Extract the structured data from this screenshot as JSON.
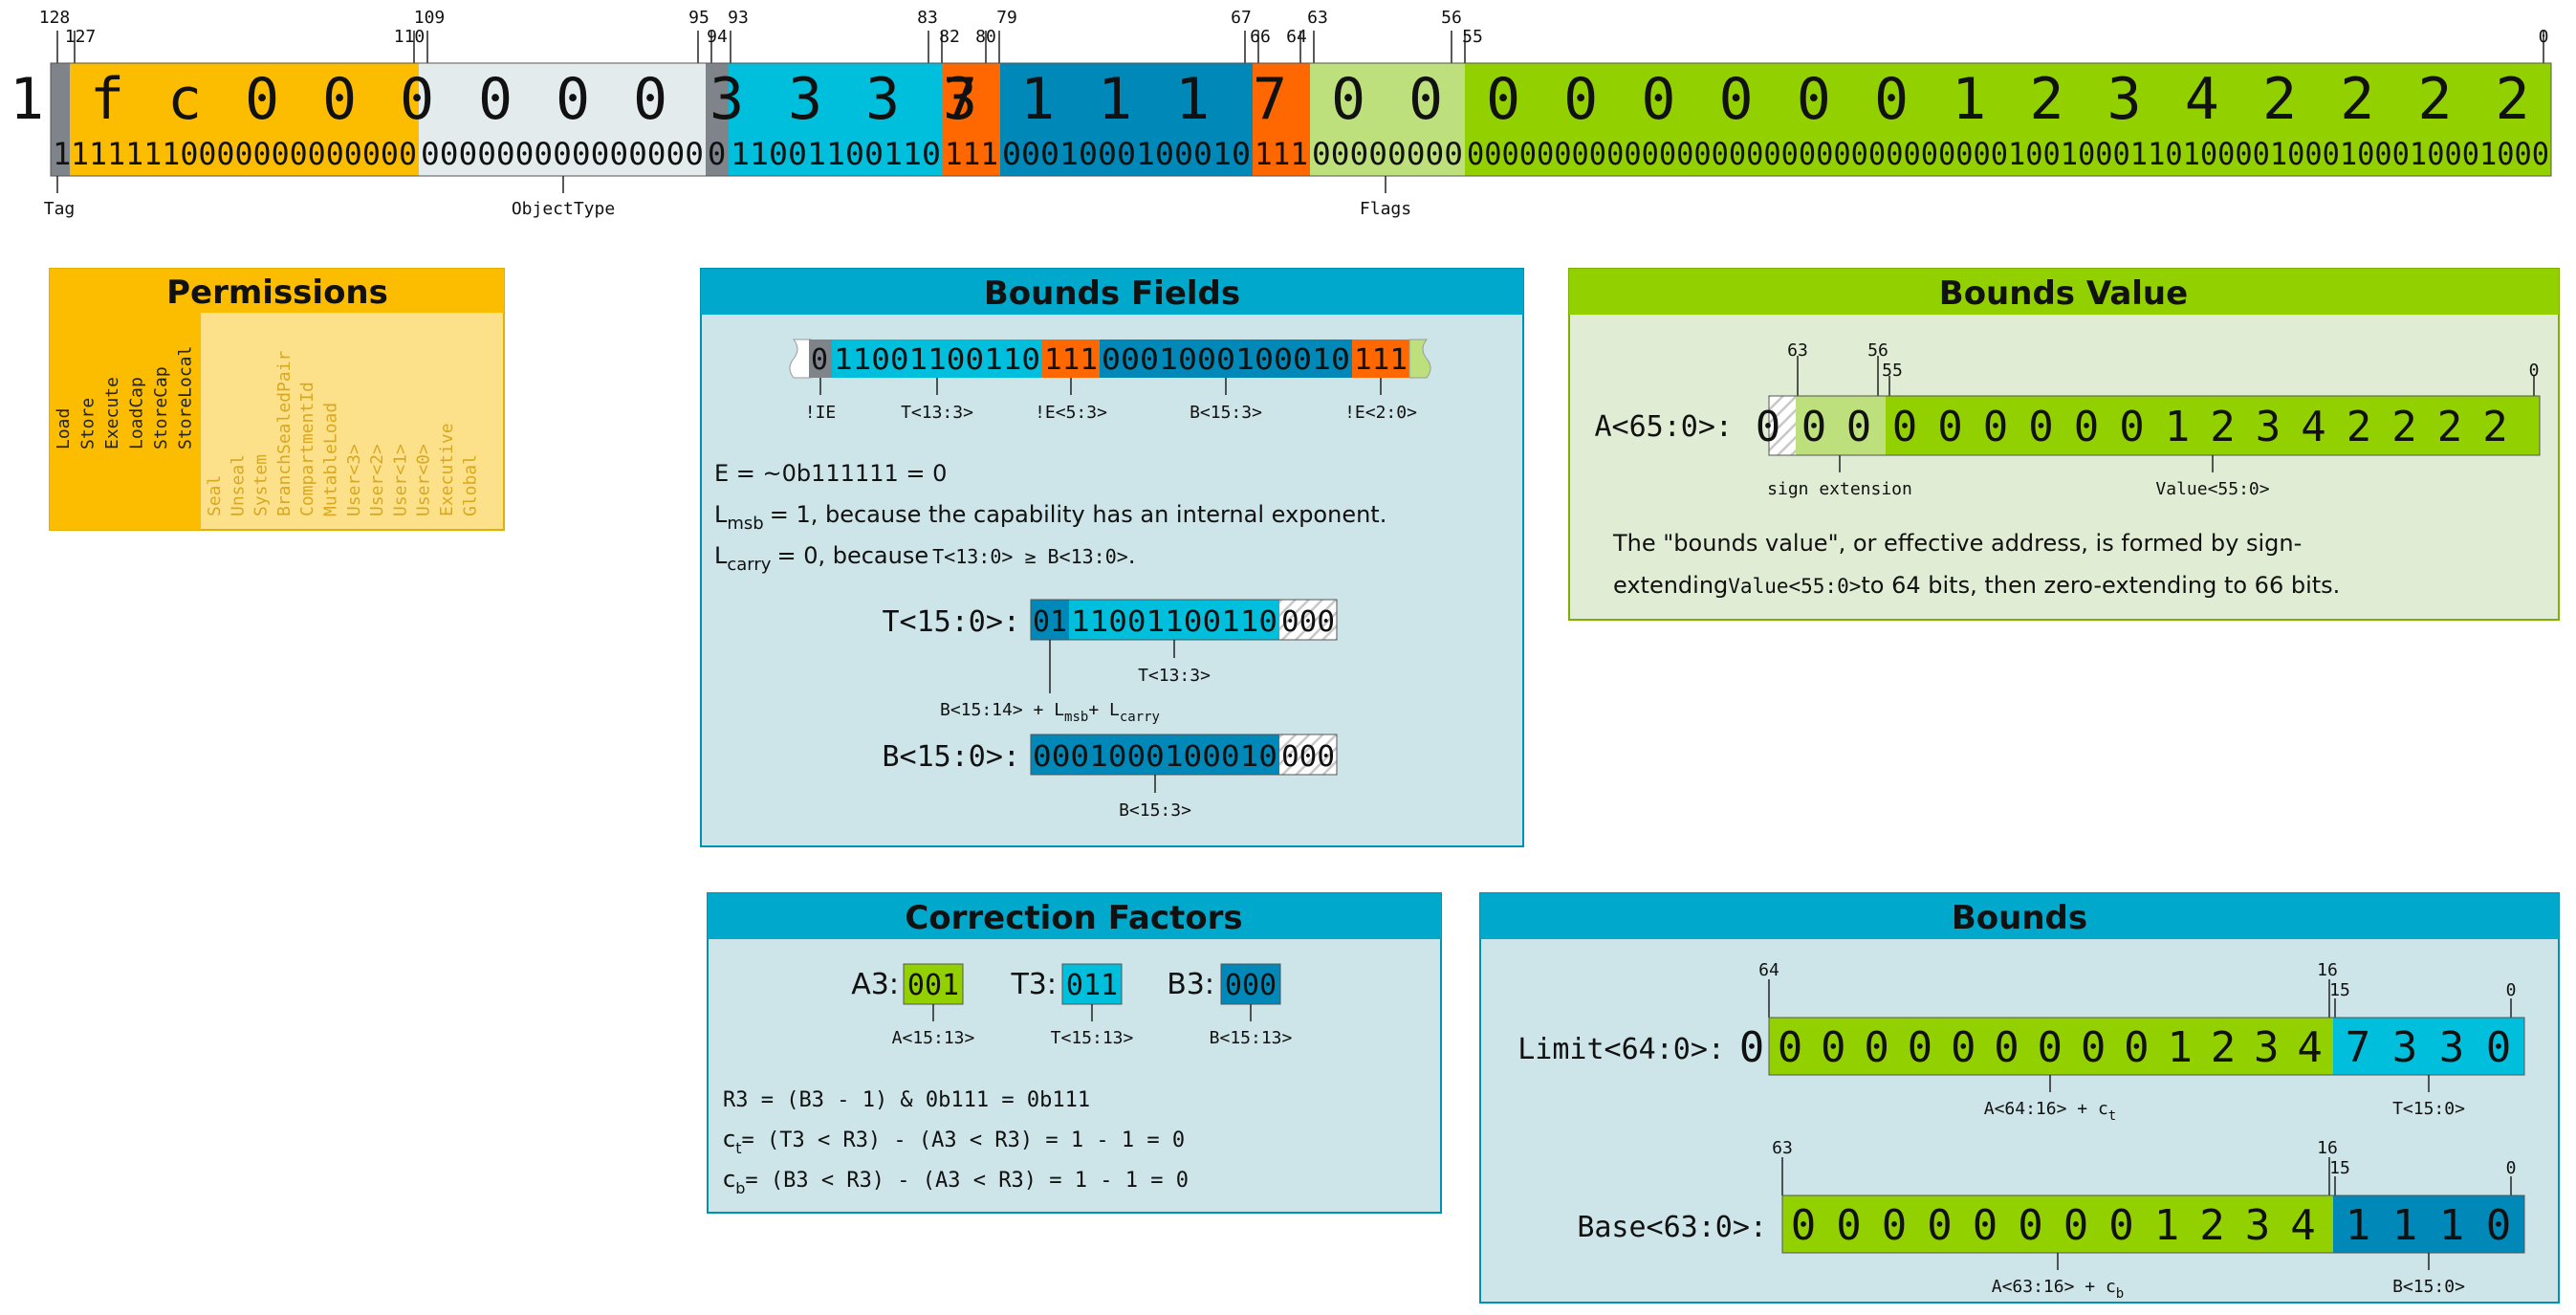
{
  "capability": {
    "tag_hex": "1",
    "tag_bin": "1",
    "tag_label": "Tag",
    "perm_hex": [
      "f",
      "c",
      "0",
      "0"
    ],
    "perm_bin": "1111110000000000000",
    "otype_hex": [
      "0",
      "0",
      "0",
      "0"
    ],
    "otype_bin": "000000000000000",
    "otype_label": "ObjectType",
    "ie_hex": "3",
    "ie_bin": "0",
    "t_hex": [
      "3",
      "3",
      "3"
    ],
    "t_bin": "11001100110",
    "e_hi_hex": "7",
    "e_hi_bin": "111",
    "b_hex": [
      "1",
      "1",
      "1"
    ],
    "b_bin": "0001000100010",
    "e_lo_hex": "7",
    "e_lo_bin": "111",
    "flags_hex": [
      "0",
      "0"
    ],
    "flags_bin": "00000000",
    "flags_label": "Flags",
    "addr_hex": [
      "0",
      "0",
      "0",
      "0",
      "0",
      "0",
      "1",
      "2",
      "3",
      "4",
      "2",
      "2",
      "2",
      "2"
    ],
    "addr_bin": "00000000000000000000000000000001001000110100001000100010001000",
    "bit_ticks": [
      "128",
      "127",
      "110",
      "109",
      "95",
      "94",
      "93",
      "83",
      "82",
      "80",
      "79",
      "67",
      "66",
      "64",
      "63",
      "56",
      "55",
      "0"
    ]
  },
  "permissions": {
    "title": "Permissions",
    "active": [
      "Load",
      "Store",
      "Execute",
      "LoadCap",
      "StoreCap",
      "StoreLocal"
    ],
    "inactive": [
      "Seal",
      "Unseal",
      "System",
      "BranchSealedPair",
      "CompartmentId",
      "MutableLoad",
      "User<3>",
      "User<2>",
      "User<1>",
      "User<0>",
      "Executive",
      "Global"
    ]
  },
  "bounds_fields": {
    "title": "Bounds Fields",
    "strip": [
      "0",
      "11001100110",
      "111",
      "0001000100010",
      "111"
    ],
    "labels": [
      "!IE",
      "T<13:3>",
      "!E<5:3>",
      "B<15:3>",
      "!E<2:0>"
    ],
    "line1": "E = ~0b111111 = 0",
    "line2_pre": "L",
    "line2_sub": "msb",
    "line2_post": "= 1, because the capability has an internal exponent.",
    "line3_pre": "L",
    "line3_sub": "carry",
    "line3_mid": "= 0, because",
    "line3_code": "T<13:0> ≥ B<13:0>",
    "line3_end": ".",
    "t_label": "T<15:0>:",
    "t_parts": [
      "01",
      "11001100110",
      "000"
    ],
    "t_caption": "T<13:3>",
    "t_formula_pre": "B<15:14> + L",
    "t_formula_sub1": "msb",
    "t_formula_mid": "+ L",
    "t_formula_sub2": "carry",
    "b_label": "B<15:0>:",
    "b_parts": [
      "0001000100010",
      "000"
    ],
    "b_caption": "B<15:3>"
  },
  "bounds_value": {
    "title": "Bounds Value",
    "label": "A<65:0>:",
    "ticks": [
      "63",
      "56",
      "55",
      "0"
    ],
    "lead": "0",
    "sign": [
      "0",
      "0"
    ],
    "digits": [
      "0",
      "0",
      "0",
      "0",
      "0",
      "0",
      "1",
      "2",
      "3",
      "4",
      "2",
      "2",
      "2",
      "2"
    ],
    "sign_caption": "sign extension",
    "value_caption": "Value<55:0>",
    "desc1": "The \"bounds value\", or effective address, is formed by sign-",
    "desc2_pre": "extending",
    "desc2_code": "Value<55:0>",
    "desc2_post": "to 64 bits, then zero-extending to 66 bits."
  },
  "correction": {
    "title": "Correction Factors",
    "a3_label": "A3:",
    "a3": "001",
    "a3_cap": "A<15:13>",
    "t3_label": "T3:",
    "t3": "011",
    "t3_cap": "T<15:13>",
    "b3_label": "B3:",
    "b3": "000",
    "b3_cap": "B<15:13>",
    "line1": "R3 = (B3 - 1) & 0b111 = 0b111",
    "ct_pre": "c",
    "ct_sub": "t",
    "ct_post": "= (T3 < R3) - (A3 < R3) = 1 - 1 = 0",
    "cb_pre": "c",
    "cb_sub": "b",
    "cb_post": "= (B3 < R3) - (A3 < R3) = 1 - 1 = 0"
  },
  "bounds": {
    "title": "Bounds",
    "limit_label": "Limit<64:0>:",
    "limit_lead": "0",
    "limit_hi": [
      "0",
      "0",
      "0",
      "0",
      "0",
      "0",
      "0",
      "0",
      "0",
      "1",
      "2",
      "3",
      "4"
    ],
    "limit_lo": [
      "7",
      "3",
      "3",
      "0"
    ],
    "limit_ticks": [
      "64",
      "16",
      "15",
      "0"
    ],
    "limit_cap_hi": "A<64:16> + c",
    "limit_cap_hi_sub": "t",
    "limit_cap_lo": "T<15:0>",
    "base_label": "Base<63:0>:",
    "base_hi": [
      "0",
      "0",
      "0",
      "0",
      "0",
      "0",
      "0",
      "0",
      "1",
      "2",
      "3",
      "4"
    ],
    "base_lo": [
      "1",
      "1",
      "1",
      "0"
    ],
    "base_ticks": [
      "63",
      "16",
      "15",
      "0"
    ],
    "base_cap_hi": "A<63:16> + c",
    "base_cap_hi_sub": "b",
    "base_cap_lo": "B<15:0>"
  },
  "colors": {
    "tag": "#7f848a",
    "perm": "#fcbd00",
    "perm_panel_bg": "#fde18a",
    "otype": "#e4ebec",
    "cyan": "#00bfdd",
    "orange": "#ff6700",
    "blue": "#0088b8",
    "lightgreen": "#bde07c",
    "green": "#92d000",
    "panel_blue_header": "#00a8cc",
    "panel_blue_bg": "#cde5e8",
    "panel_green_bg": "#e0ecd3"
  }
}
